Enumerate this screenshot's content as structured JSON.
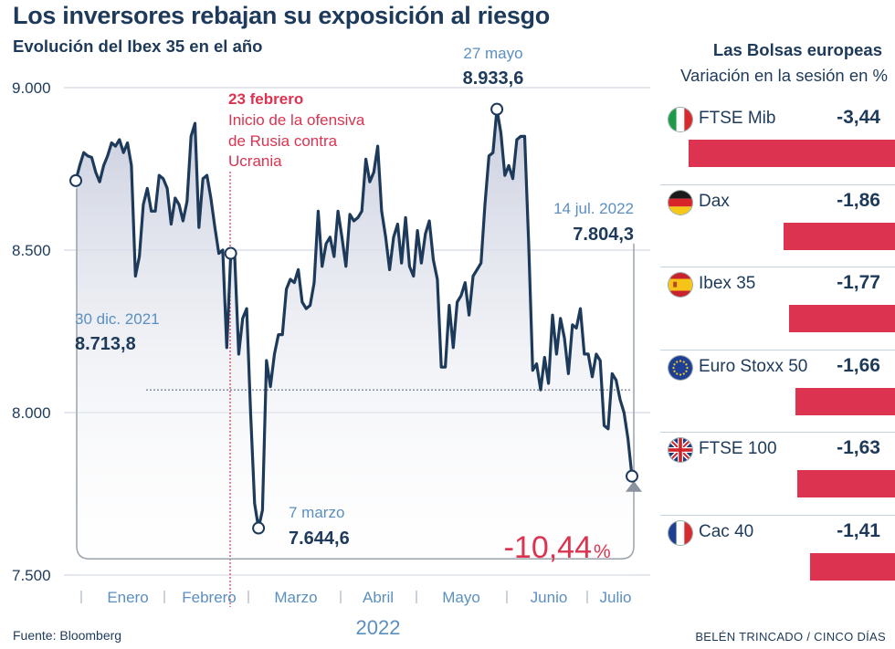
{
  "header": {
    "title": "Los inversores rebajan su exposición al riesgo",
    "subtitle": "Evolución del Ibex 35 en el año"
  },
  "chart_data": {
    "type": "line",
    "title": "Evolución del Ibex 35 en el año",
    "ylim": [
      7500,
      9000
    ],
    "yticks": [
      "9.000",
      "8.500",
      "8.000",
      "7.500"
    ],
    "ytick_values": [
      9000,
      8500,
      8000,
      7500
    ],
    "months": [
      "Enero",
      "Febrero",
      "Marzo",
      "Abril",
      "Mayo",
      "Junio",
      "Julio"
    ],
    "year_label": "2022",
    "series": [
      {
        "name": "Ibex 35",
        "values": [
          8713.8,
          8760,
          8800,
          8790,
          8785,
          8740,
          8710,
          8760,
          8790,
          8830,
          8820,
          8840,
          8800,
          8830,
          8760,
          8420,
          8480,
          8640,
          8690,
          8620,
          8620,
          8730,
          8720,
          8690,
          8580,
          8660,
          8640,
          8590,
          8650,
          8850,
          8890,
          8570,
          8720,
          8730,
          8660,
          8570,
          8490,
          8500,
          8200,
          8490,
          8480,
          8180,
          8290,
          8320,
          8000,
          7720,
          7644.6,
          7700,
          8160,
          8080,
          8180,
          8240,
          8240,
          8380,
          8410,
          8400,
          8440,
          8340,
          8320,
          8330,
          8400,
          8620,
          8450,
          8520,
          8540,
          8480,
          8620,
          8540,
          8450,
          8610,
          8590,
          8600,
          8620,
          8780,
          8710,
          8740,
          8820,
          8620,
          8540,
          8440,
          8540,
          8580,
          8460,
          8600,
          8450,
          8420,
          8560,
          8460,
          8550,
          8590,
          8470,
          8410,
          8140,
          8140,
          8330,
          8200,
          8340,
          8360,
          8400,
          8300,
          8420,
          8440,
          8460,
          8640,
          8790,
          8800,
          8933.6,
          8860,
          8730,
          8760,
          8720,
          8840,
          8850,
          8850,
          8520,
          8130,
          8150,
          8070,
          8170,
          8090,
          8300,
          8180,
          8290,
          8230,
          8120,
          8270,
          8260,
          8320,
          8180,
          8180,
          8110,
          8180,
          8160,
          7960,
          7950,
          8120,
          8100,
          8040,
          8000,
          7920,
          7804.3
        ]
      }
    ],
    "reference_line": 8070,
    "annotations": {
      "start": {
        "date": "30 dic. 2021",
        "value": "8.713,8"
      },
      "invasion": {
        "date": "23 febrero",
        "line1": "Inicio de la ofensiva",
        "line2": "de Rusia contra",
        "line3": "Ucrania"
      },
      "low": {
        "date": "7 marzo",
        "value": "7.644,6"
      },
      "peak": {
        "date": "27 mayo",
        "value": "8.933,6"
      },
      "end": {
        "date": "14 jul. 2022",
        "value": "7.804,3"
      },
      "change": {
        "number": "-10,44",
        "unit": "%"
      }
    }
  },
  "markets": {
    "title": "Las Bolsas europeas",
    "subtitle": "Variación en la sesión en %",
    "items": [
      {
        "name": "FTSE Mib",
        "display": "-3,44",
        "value": -3.44,
        "flag": "italy-flag-icon"
      },
      {
        "name": "Dax",
        "display": "-1,86",
        "value": -1.86,
        "flag": "germany-flag-icon"
      },
      {
        "name": "Ibex 35",
        "display": "-1,77",
        "value": -1.77,
        "flag": "spain-flag-icon"
      },
      {
        "name": "Euro Stoxx 50",
        "display": "-1,66",
        "value": -1.66,
        "flag": "eu-flag-icon"
      },
      {
        "name": "FTSE 100",
        "display": "-1,63",
        "value": -1.63,
        "flag": "uk-flag-icon"
      },
      {
        "name": "Cac 40",
        "display": "-1,41",
        "value": -1.41,
        "flag": "france-flag-icon"
      }
    ]
  },
  "footer": {
    "source": "Fuente: Bloomberg",
    "credit": "BELÉN TRINCADO / CINCO DÍAS"
  },
  "colors": {
    "navy": "#1d3a5a",
    "light_blue": "#5b8fc0",
    "red": "#dc3350",
    "area": "#dde0ea"
  }
}
